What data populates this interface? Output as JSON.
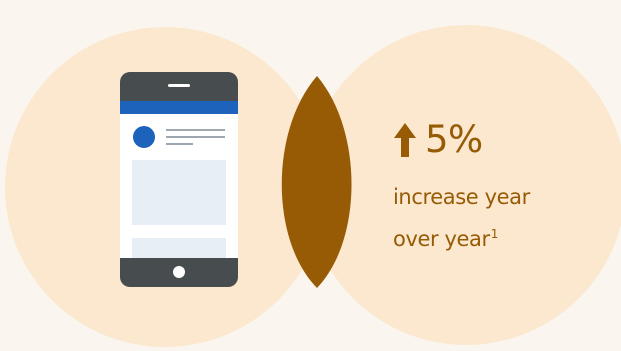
{
  "colors": {
    "background": "#faf6ef",
    "circle": "#fbe8cf",
    "overlap": "#975b05",
    "accent": "#975b05",
    "phone_body": "#474c4e",
    "phone_header": "#1d62bb",
    "phone_screen": "#ffffff",
    "phone_block": "#e7eef6"
  },
  "icons": {
    "phone": "smartphone-icon",
    "arrow": "up-arrow-icon"
  },
  "stat": {
    "value": "5%",
    "caption_line1": "increase year",
    "caption_line2": "over year",
    "footnote": "1"
  }
}
